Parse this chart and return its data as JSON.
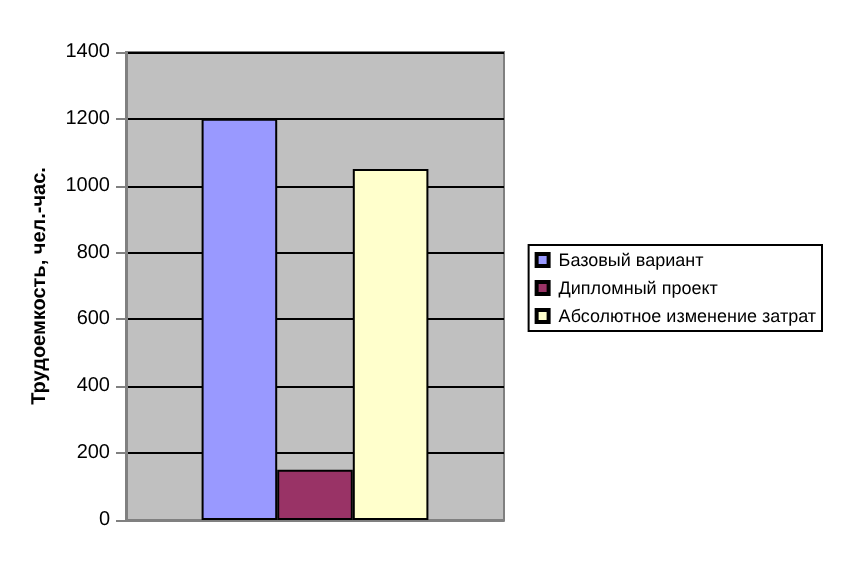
{
  "chart_data": {
    "type": "bar",
    "ylabel": "Трудоемкость, чел.-час.",
    "categories": [
      null
    ],
    "series": [
      {
        "name": "Базовый вариант",
        "color": "#9999ff",
        "values": [
          1200
        ]
      },
      {
        "name": "Дипломный проект",
        "color": "#993366",
        "values": [
          150
        ]
      },
      {
        "name": "Абсолютное изменение затрат",
        "color": "#ffffcc",
        "values": [
          1050
        ]
      }
    ],
    "ylim": [
      0,
      1400
    ],
    "yticks": [
      0,
      200,
      400,
      600,
      800,
      1000,
      1200,
      1400
    ],
    "grid": "y",
    "legend": "right"
  }
}
